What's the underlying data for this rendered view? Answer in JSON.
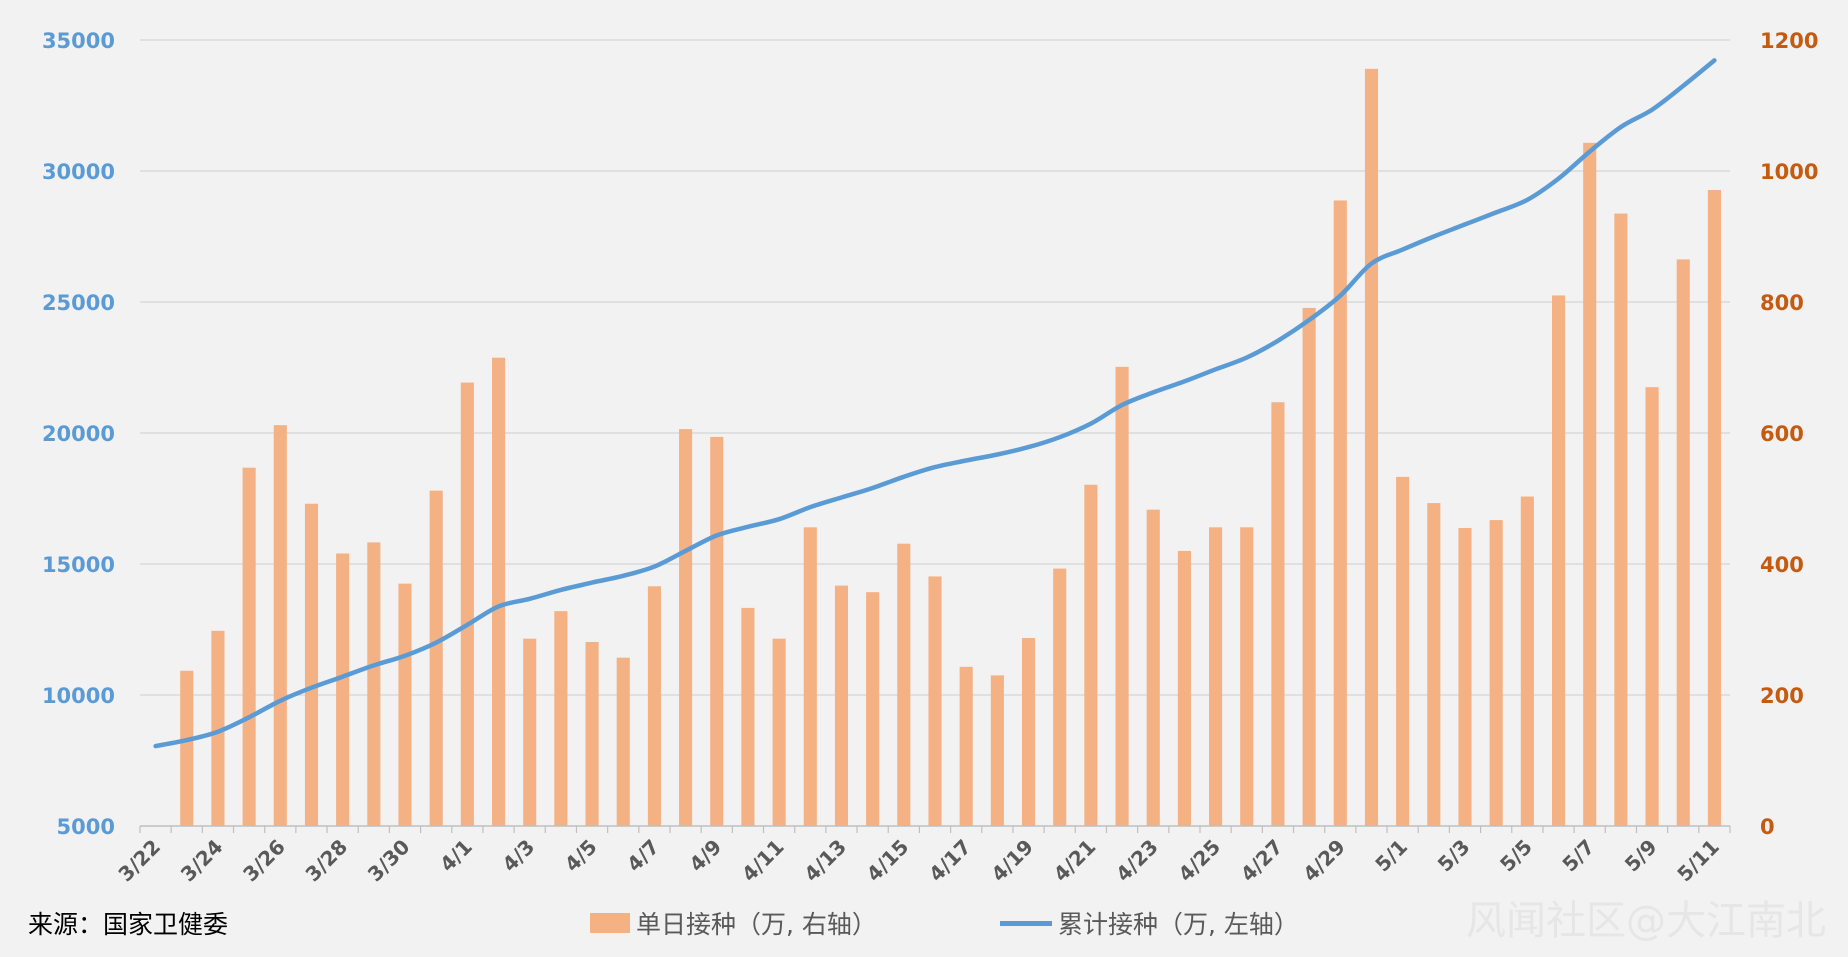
{
  "source_label": "来源：国家卫健委",
  "watermark": "风闻社区@大江南北",
  "legend": {
    "bar_label": "单日接种（万, 右轴）",
    "line_label": "累计接种（万, 左轴）"
  },
  "colors": {
    "bar": "#f4b183",
    "line": "#5b9bd5",
    "left_axis": "#5b9bd5",
    "right_axis": "#c55a11",
    "grid": "#d9d9d9"
  },
  "chart_data": {
    "type": "bar+line",
    "left_axis": {
      "min": 5000,
      "max": 35000,
      "ticks": [
        5000,
        10000,
        15000,
        20000,
        25000,
        30000,
        35000
      ]
    },
    "right_axis": {
      "min": 0,
      "max": 1200,
      "ticks": [
        0,
        200,
        400,
        600,
        800,
        1000,
        1200
      ]
    },
    "x_tick_labels": [
      "3/22",
      "3/24",
      "3/26",
      "3/28",
      "3/30",
      "4/1",
      "4/3",
      "4/5",
      "4/7",
      "4/9",
      "4/11",
      "4/13",
      "4/15",
      "4/17",
      "4/19",
      "4/21",
      "4/23",
      "4/25",
      "4/27",
      "4/29",
      "5/1",
      "5/3",
      "5/5",
      "5/7",
      "5/9",
      "5/11"
    ],
    "grid": true,
    "legend_position": "bottom",
    "series": [
      {
        "name": "单日接种（万, 右轴）",
        "type": "bar",
        "axis": "right",
        "dates": [
          "3/23",
          "3/24",
          "3/25",
          "3/26",
          "3/27",
          "3/28",
          "3/29",
          "3/30",
          "3/31",
          "4/1",
          "4/2",
          "4/3",
          "4/4",
          "4/5",
          "4/6",
          "4/7",
          "4/8",
          "4/9",
          "4/10",
          "4/11",
          "4/12",
          "4/13",
          "4/14",
          "4/15",
          "4/16",
          "4/17",
          "4/18",
          "4/19",
          "4/20",
          "4/21",
          "4/22",
          "4/23",
          "4/24",
          "4/25",
          "4/26",
          "4/27",
          "4/28",
          "4/29",
          "4/30",
          "5/1",
          "5/2",
          "5/3",
          "5/4",
          "5/5",
          "5/6",
          "5/7",
          "5/8",
          "5/9",
          "5/10",
          "5/11"
        ],
        "values": [
          237,
          298,
          547,
          612,
          492,
          416,
          433,
          370,
          512,
          677,
          715,
          286,
          328,
          281,
          257,
          366,
          606,
          594,
          333,
          286,
          456,
          367,
          357,
          431,
          381,
          243,
          230,
          287,
          393,
          521,
          701,
          483,
          420,
          456,
          456,
          647,
          791,
          955,
          1156,
          533,
          493,
          455,
          467,
          503,
          810,
          1043,
          935,
          670,
          865,
          971
        ]
      },
      {
        "name": "累计接种（万, 左轴）",
        "type": "line",
        "axis": "left",
        "dates": [
          "3/22",
          "3/23",
          "3/24",
          "3/25",
          "3/26",
          "3/27",
          "3/28",
          "3/29",
          "3/30",
          "3/31",
          "4/1",
          "4/2",
          "4/3",
          "4/4",
          "4/5",
          "4/6",
          "4/7",
          "4/8",
          "4/9",
          "4/10",
          "4/11",
          "4/12",
          "4/13",
          "4/14",
          "4/15",
          "4/16",
          "4/17",
          "4/18",
          "4/19",
          "4/20",
          "4/21",
          "4/22",
          "4/23",
          "4/24",
          "4/25",
          "4/26",
          "4/27",
          "4/28",
          "4/29",
          "4/30",
          "5/1",
          "5/2",
          "5/3",
          "5/4",
          "5/5",
          "5/6",
          "5/7",
          "5/8",
          "5/9",
          "5/10",
          "5/11"
        ],
        "values": [
          8050,
          8280,
          8600,
          9150,
          9780,
          10280,
          10700,
          11130,
          11500,
          12000,
          12680,
          13380,
          13670,
          14010,
          14290,
          14550,
          14900,
          15500,
          16090,
          16420,
          16710,
          17170,
          17540,
          17900,
          18330,
          18700,
          18950,
          19180,
          19460,
          19840,
          20360,
          21070,
          21550,
          21970,
          22430,
          22880,
          23520,
          24310,
          25240,
          26470,
          27000,
          27500,
          27960,
          28420,
          28900,
          29710,
          30740,
          31680,
          32340,
          33250,
          34220
        ]
      }
    ]
  }
}
